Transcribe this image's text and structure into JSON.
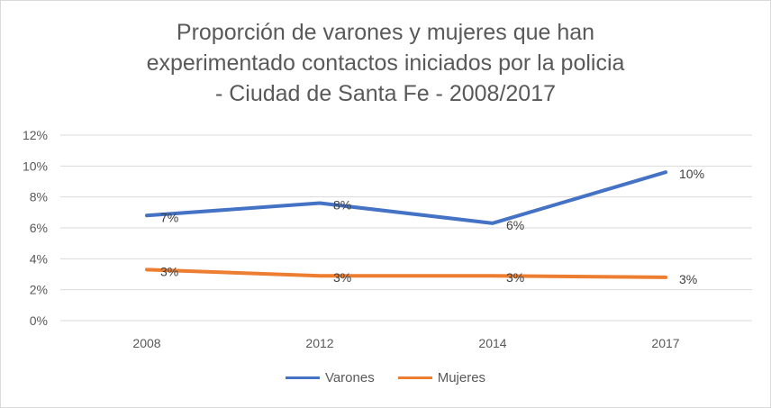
{
  "chart_data": {
    "type": "line",
    "title_lines": [
      "Proporción de varones y mujeres que han",
      "experimentado contactos iniciados por la policia",
      "- Ciudad de Santa Fe - 2008/2017"
    ],
    "categories": [
      "2008",
      "2012",
      "2014",
      "2017"
    ],
    "y_ticks": [
      "0%",
      "2%",
      "4%",
      "6%",
      "8%",
      "10%",
      "12%"
    ],
    "ylim": [
      0,
      12
    ],
    "grid": true,
    "legend_position": "bottom",
    "series": [
      {
        "name": "Varones",
        "color": "#4472c4",
        "values": [
          6.8,
          7.6,
          6.3,
          9.6
        ],
        "labels": [
          "7%",
          "8%",
          "6%",
          "10%"
        ]
      },
      {
        "name": "Mujeres",
        "color": "#ed7d31",
        "values": [
          3.3,
          2.9,
          2.9,
          2.8
        ],
        "labels": [
          "3%",
          "3%",
          "3%",
          "3%"
        ]
      }
    ]
  }
}
